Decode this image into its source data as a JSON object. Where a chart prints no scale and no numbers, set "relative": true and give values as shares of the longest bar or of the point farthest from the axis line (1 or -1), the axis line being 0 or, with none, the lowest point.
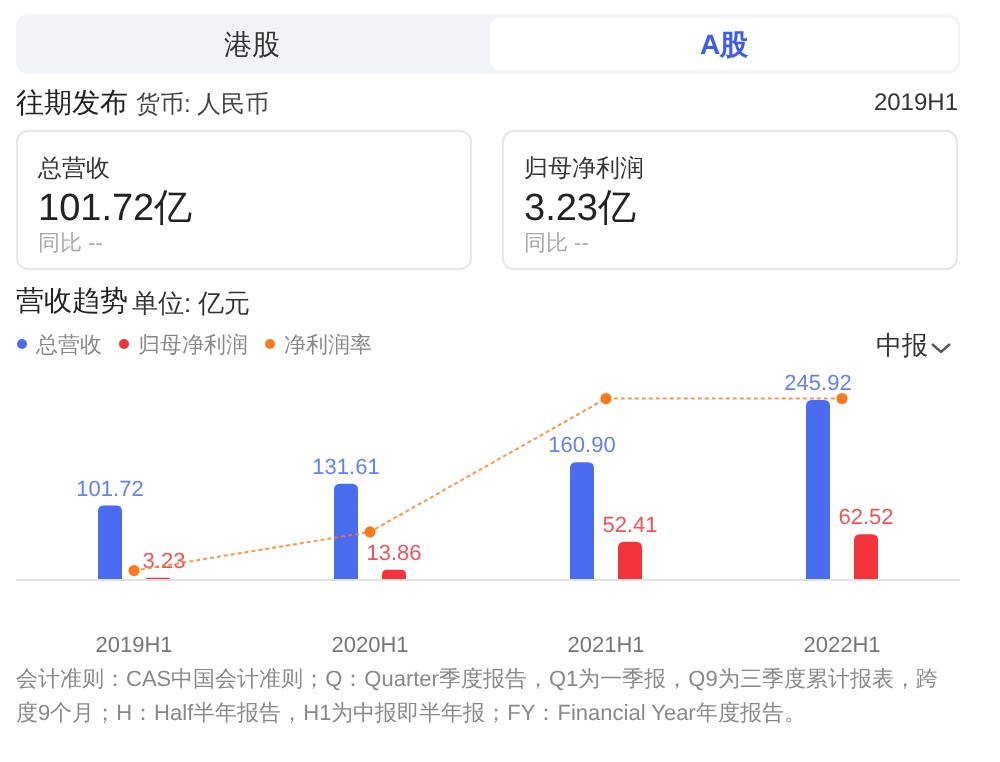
{
  "chart_data": [
    {
      "type": "other",
      "title": "往期发布",
      "subtitle": "货币: 人民币",
      "annotations": [
        "港股",
        "A股",
        "2019H1",
        "总营收",
        "101.72亿",
        "同比 --",
        "归母净利润",
        "3.23亿",
        "同比 --"
      ]
    },
    {
      "type": "bar",
      "title": "营收趋势",
      "subtitle": "单位: 亿元",
      "categories": [
        "2019H1",
        "2020H1",
        "2021H1",
        "2022H1"
      ],
      "legend": "top left",
      "series": [
        {
          "name": "总营收",
          "color": "#4a6cf0",
          "values": [
            101.72,
            131.61,
            160.9,
            245.92
          ],
          "value_labels": [
            "101.72",
            "131.61",
            "160.90",
            "245.92"
          ]
        },
        {
          "name": "归母净利润",
          "color": "#f5333a",
          "values": [
            3.23,
            13.86,
            52.41,
            62.52
          ],
          "value_labels": [
            "3.23",
            "13.86",
            "52.41",
            "62.52"
          ]
        }
      ],
      "annotations": [
        "中报",
        "会计准则：CAS中国会计准则；Q：Quarter季度报告，Q1为一季报，Q9为三季度累计报表，跨度9个月；H：Half半年报告，H1为中报即半年报；FY：Financial Year年度报告。"
      ]
    },
    {
      "type": "line",
      "relative": true,
      "categories": [
        null,
        null,
        null,
        null
      ],
      "legend": "top left",
      "marker": "circle",
      "line_style": "dotted",
      "series": [
        {
          "name": "净利润率",
          "color": "#ff7a1a",
          "values": [
            0.052,
            0.265,
            1,
            1
          ]
        }
      ]
    }
  ]
}
